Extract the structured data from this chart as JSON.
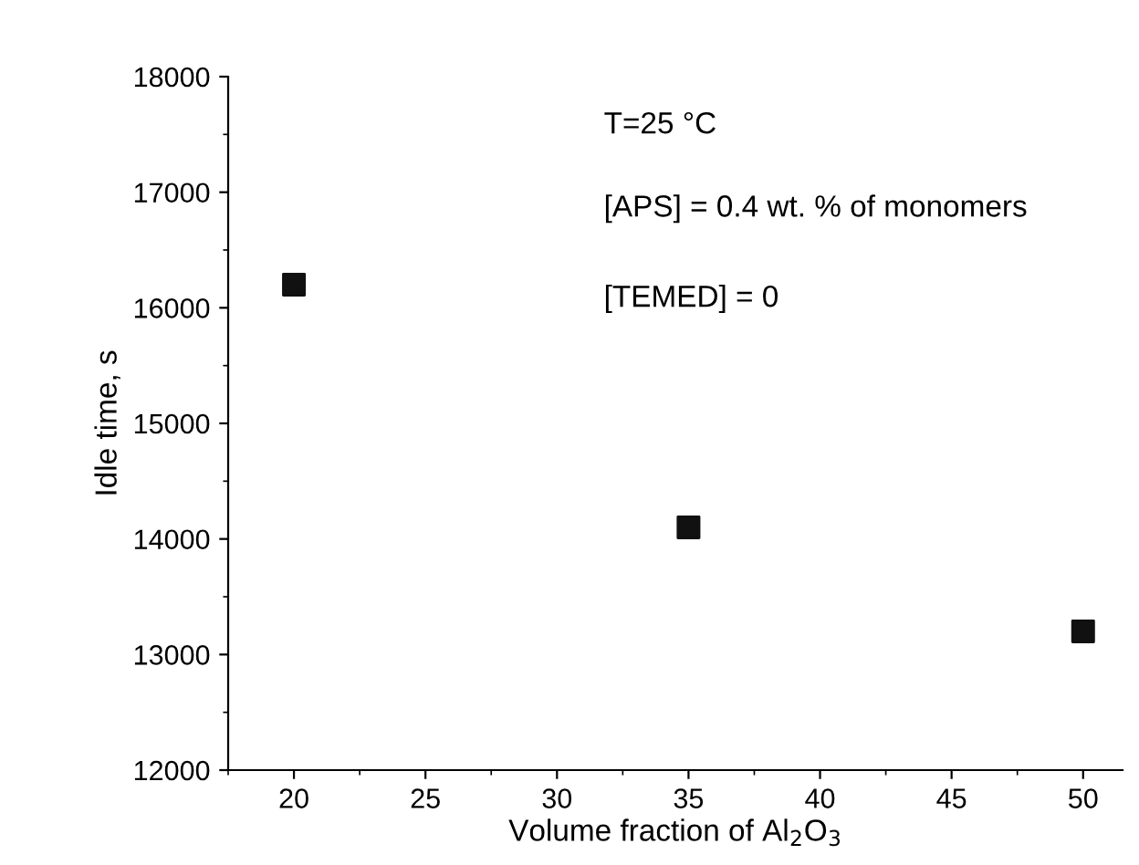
{
  "chart_data": {
    "type": "scatter",
    "xlabel": "Volume fraction of Al$_{2}$O$_{3}$",
    "ylabel": "Idle time, s",
    "x": [
      20,
      35,
      50
    ],
    "series": [
      {
        "color": "#111111",
        "values": [
          16200,
          14100,
          13200
        ]
      }
    ],
    "marker": "square",
    "grid": false,
    "legend": false,
    "xlim": [
      17.5,
      51.5
    ],
    "xticks": [
      20,
      25,
      30,
      35,
      40,
      45,
      50
    ],
    "ylim": [
      12000,
      18000
    ],
    "yticks": [
      12000,
      13000,
      14000,
      15000,
      16000,
      17000,
      18000
    ],
    "annotations": [
      "T=25 °C",
      "[APS] = 0.4 wt. % of monomers",
      "[TEMED] = 0"
    ]
  }
}
